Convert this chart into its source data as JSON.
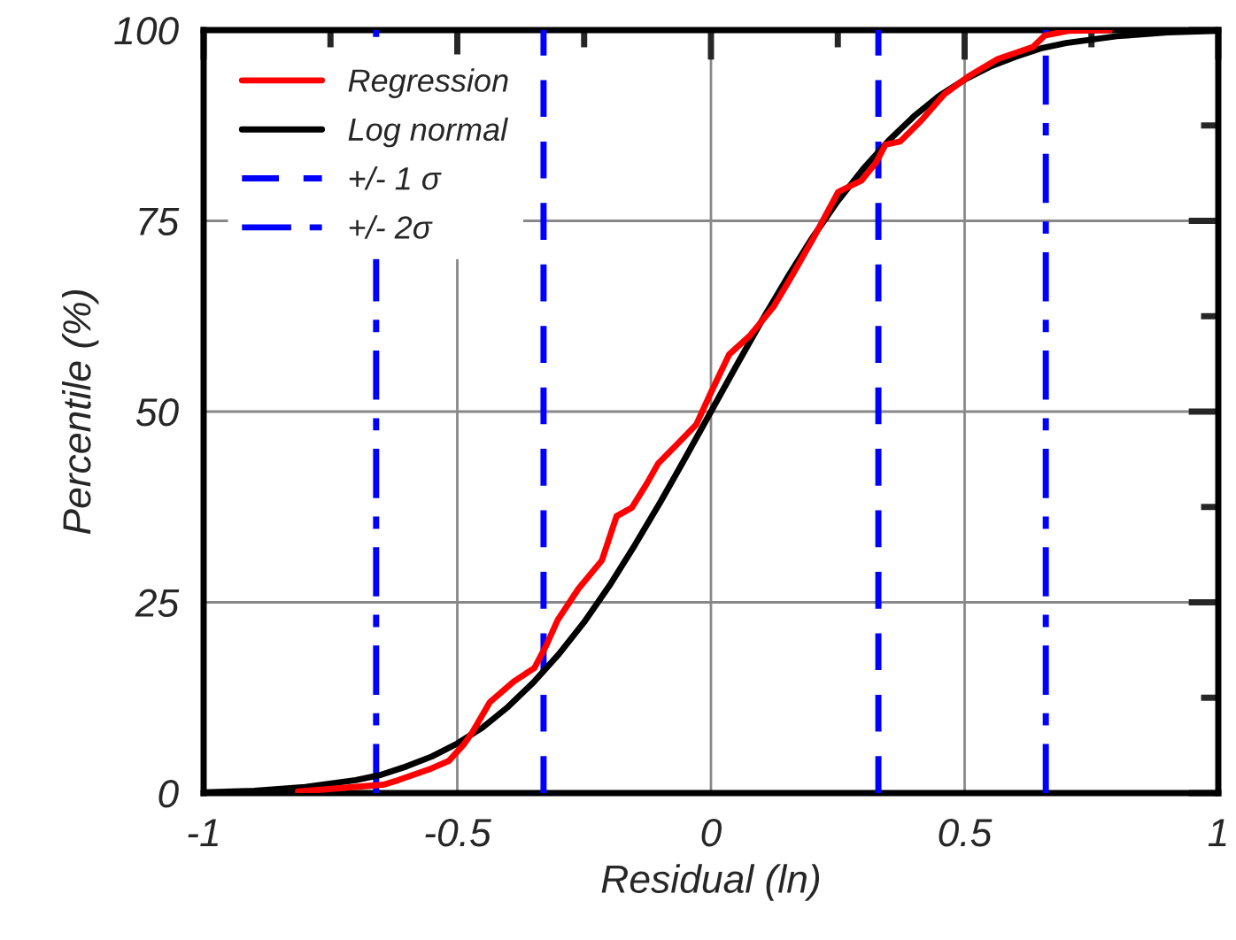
{
  "chart_data": {
    "type": "line",
    "xlabel": "Residual (ln)",
    "ylabel": "Percentile (%)",
    "xlim": [
      -1,
      1
    ],
    "ylim": [
      0,
      100
    ],
    "xticks": [
      -1,
      -0.5,
      0,
      0.5,
      1
    ],
    "yticks": [
      0,
      25,
      50,
      75,
      100
    ],
    "grid": true,
    "legend": "top left",
    "line_style": "solid",
    "marker": "none",
    "series": [
      {
        "name": "Regression",
        "color": "#ff0000",
        "x": [
          -0.814,
          -0.645,
          -0.616,
          -0.552,
          -0.517,
          -0.488,
          -0.47,
          -0.436,
          -0.389,
          -0.348,
          -0.325,
          -0.302,
          -0.261,
          -0.215,
          -0.186,
          -0.156,
          -0.127,
          -0.104,
          -0.064,
          -0.029,
          0.0,
          0.036,
          0.076,
          0.123,
          0.158,
          0.204,
          0.251,
          0.297,
          0.326,
          0.344,
          0.373,
          0.414,
          0.46,
          0.507,
          0.565,
          0.635,
          0.658,
          0.704,
          0.786
        ],
        "values": [
          0.2,
          1.1,
          1.7,
          3.2,
          4.2,
          6.3,
          8.0,
          11.9,
          14.6,
          16.4,
          19.3,
          22.7,
          26.8,
          30.5,
          36.3,
          37.4,
          40.5,
          43.2,
          45.9,
          48.3,
          52.5,
          57.5,
          59.9,
          63.7,
          67.6,
          73.0,
          78.8,
          80.3,
          82.7,
          85.0,
          85.4,
          88.1,
          91.6,
          93.9,
          96.2,
          97.8,
          99.3,
          99.9,
          100
        ]
      },
      {
        "name": "+/- 1 σ",
        "color": "#0000ff",
        "line_style": "dashed",
        "x": [
          -0.33,
          -0.33,
          null,
          0.33,
          0.33
        ],
        "values": [
          0,
          100,
          null,
          0,
          100
        ]
      },
      {
        "name": "+/- 2σ",
        "color": "#0000ff",
        "line_style": "dashdot",
        "x": [
          -0.66,
          -0.66,
          null,
          0.66,
          0.66
        ],
        "values": [
          0,
          100,
          null,
          0,
          100
        ]
      },
      {
        "name": "Log normal",
        "color": "#000000",
        "x": [
          -1,
          -0.9,
          -0.8,
          -0.7,
          -0.65,
          -0.6,
          -0.55,
          -0.5,
          -0.45,
          -0.4,
          -0.35,
          -0.3,
          -0.25,
          -0.2,
          -0.15,
          -0.1,
          -0.05,
          0,
          0.05,
          0.1,
          0.15,
          0.2,
          0.25,
          0.3,
          0.35,
          0.4,
          0.45,
          0.5,
          0.55,
          0.6,
          0.65,
          0.7,
          0.8,
          0.9,
          1
        ],
        "values": [
          0.1,
          0.3,
          0.8,
          1.7,
          2.4,
          3.5,
          4.8,
          6.5,
          8.6,
          11.3,
          14.5,
          18.2,
          22.4,
          27.2,
          32.5,
          38.1,
          44.0,
          50,
          56.0,
          61.9,
          67.5,
          72.8,
          77.6,
          81.8,
          85.5,
          88.7,
          91.4,
          93.5,
          95.2,
          96.5,
          97.6,
          98.3,
          99.2,
          99.7,
          99.9
        ]
      }
    ]
  }
}
